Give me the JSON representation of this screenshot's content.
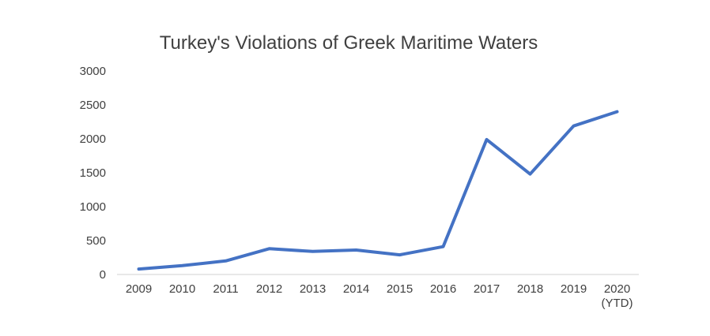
{
  "chart_data": {
    "type": "line",
    "title": "Turkey's Violations of Greek Maritime Waters",
    "xlabel": "",
    "ylabel": "",
    "categories": [
      [
        "2009"
      ],
      [
        "2010"
      ],
      [
        "2011"
      ],
      [
        "2012"
      ],
      [
        "2013"
      ],
      [
        "2014"
      ],
      [
        "2015"
      ],
      [
        "2016"
      ],
      [
        "2017"
      ],
      [
        "2018"
      ],
      [
        "2019"
      ],
      [
        "2020",
        "(YTD)"
      ]
    ],
    "series": [
      {
        "values": [
          80,
          130,
          200,
          380,
          340,
          360,
          290,
          410,
          1990,
          1480,
          2190,
          2400
        ],
        "color": "#4472c4"
      }
    ],
    "ylim": [
      0,
      3000
    ],
    "yticks": [
      0,
      500,
      1000,
      1500,
      2000,
      2500,
      3000
    ],
    "grid": false,
    "legend": "none"
  }
}
